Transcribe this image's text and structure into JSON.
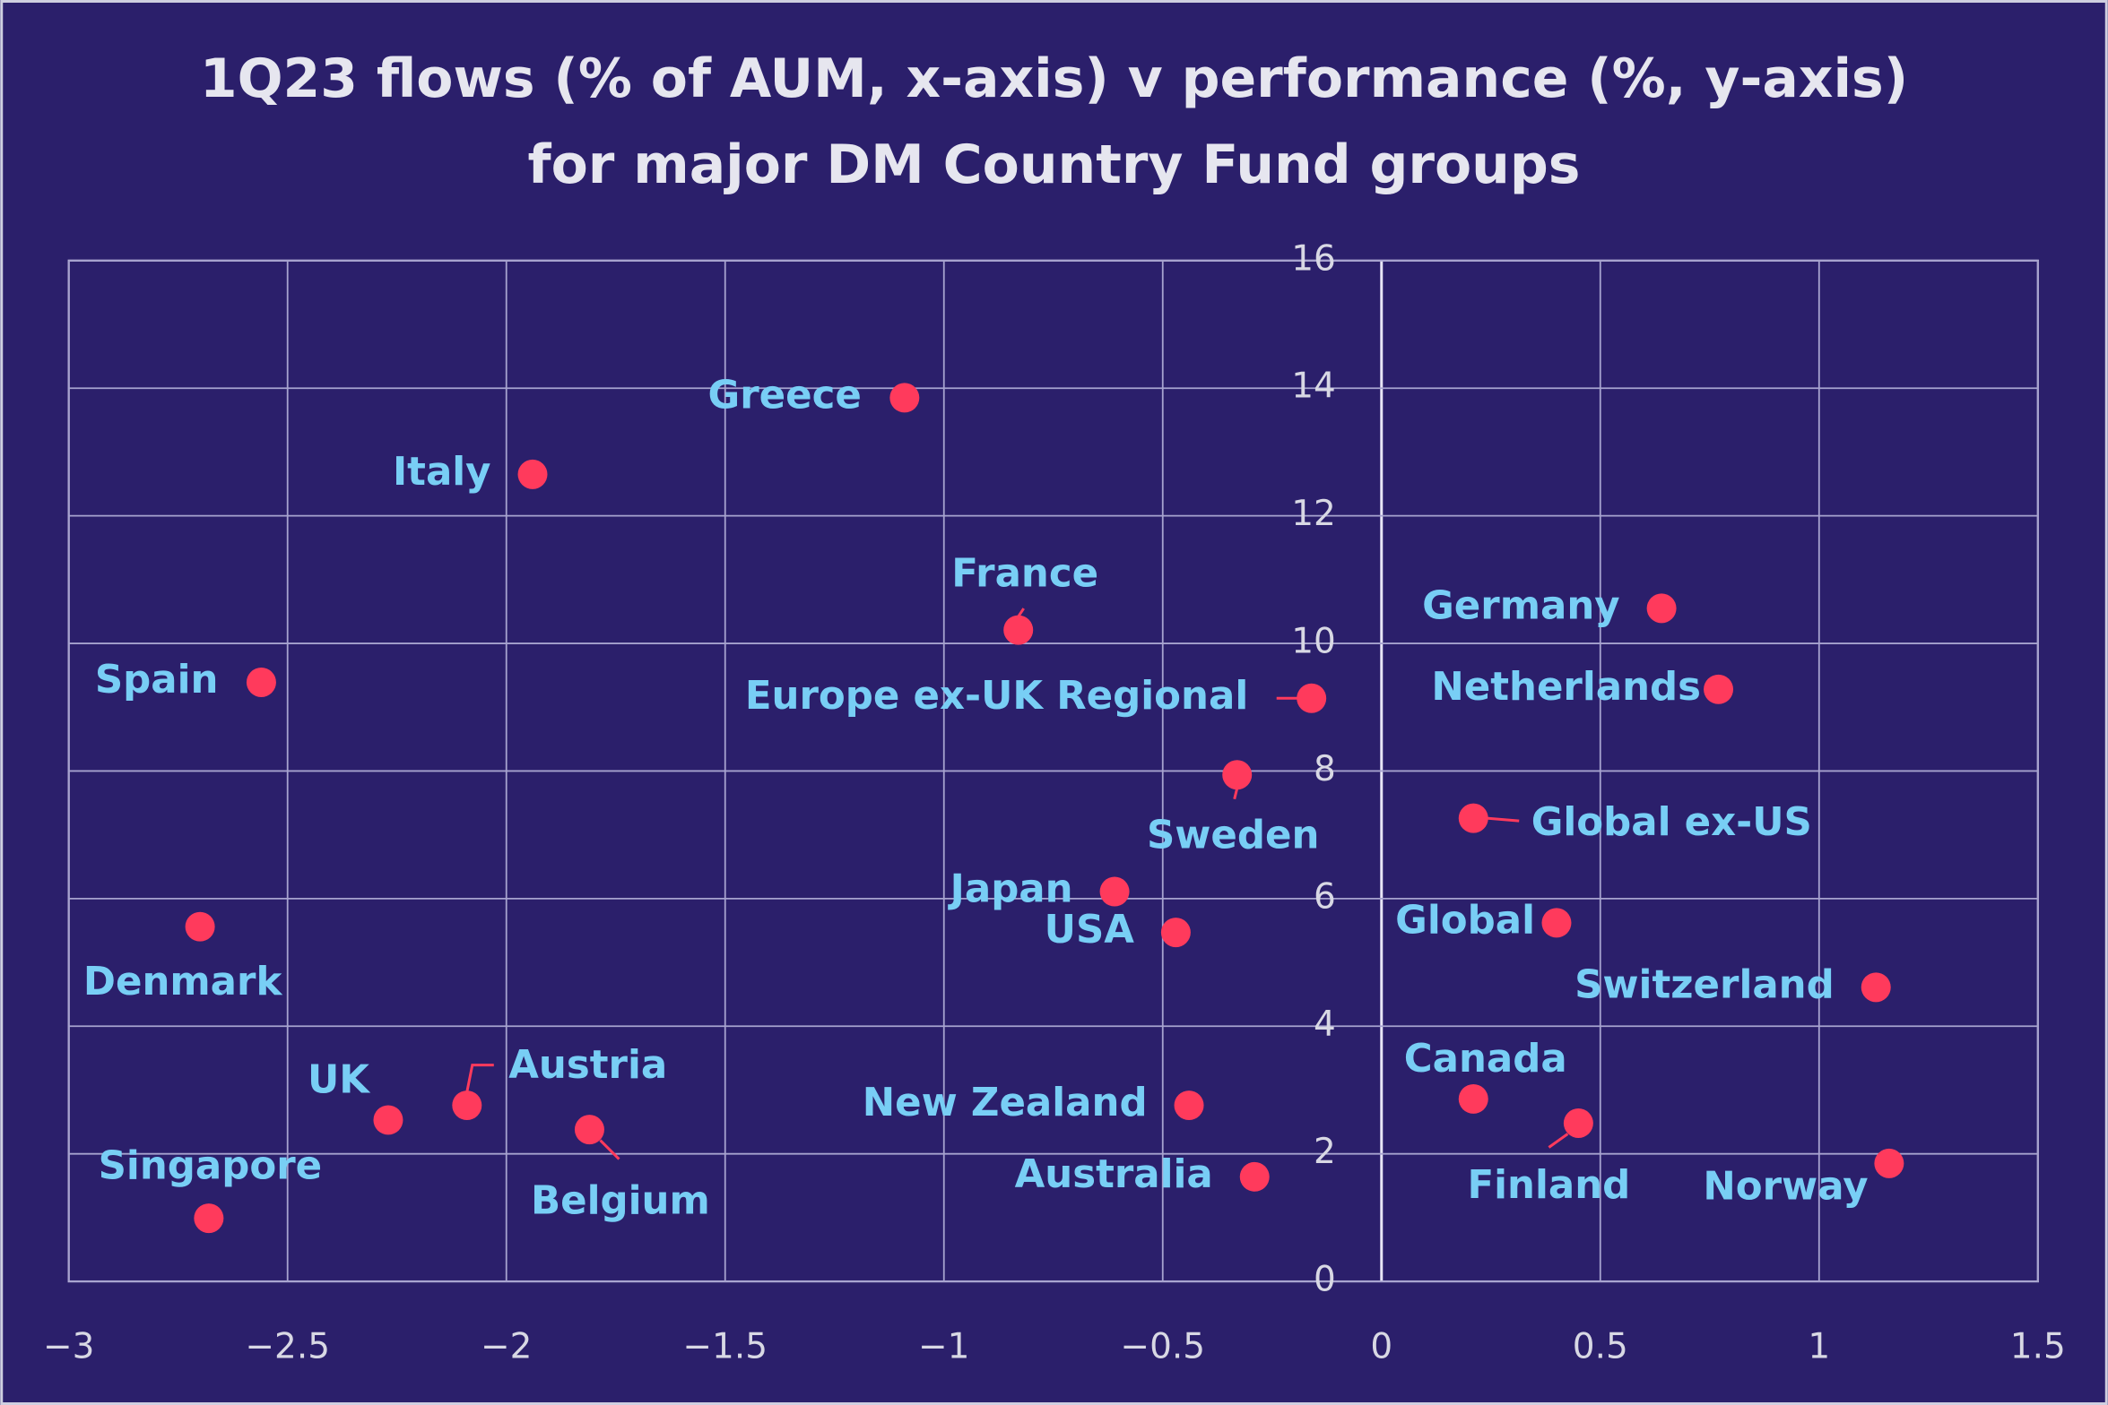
{
  "chart_data": {
    "type": "scatter",
    "title": [
      "1Q23 flows (% of AUM, x-axis) v performance (%, y-axis)",
      "for major DM Country Fund groups"
    ],
    "categories": [
      "Greece",
      "Italy",
      "France",
      "Germany",
      "Spain",
      "Europe ex-UK Regional",
      "Netherlands",
      "Sweden",
      "Global ex-US",
      "Japan",
      "USA",
      "Global",
      "Denmark",
      "Switzerland",
      "Canada",
      "Finland",
      "Norway",
      "New Zealand",
      "Australia",
      "UK",
      "Austria",
      "Belgium",
      "Singapore"
    ],
    "x": [
      -1.09,
      -1.94,
      -0.83,
      0.64,
      -2.56,
      -0.16,
      0.77,
      -0.33,
      0.21,
      -0.61,
      -0.47,
      0.4,
      -2.7,
      1.13,
      0.21,
      0.45,
      1.16,
      -0.44,
      -0.29,
      -2.27,
      -2.09,
      -1.81,
      -2.68
    ],
    "values": [
      13.85,
      12.65,
      10.21,
      10.55,
      9.39,
      9.14,
      9.28,
      7.94,
      7.26,
      6.11,
      5.47,
      5.62,
      5.56,
      4.61,
      2.86,
      2.48,
      1.85,
      2.76,
      1.64,
      2.53,
      2.76,
      2.38,
      0.99
    ],
    "color": "#ff3a5c",
    "xlim": [
      -3,
      1.5
    ],
    "xticks": [
      {
        "value": -3,
        "label": "−3"
      },
      {
        "value": -2.5,
        "label": "−2.5"
      },
      {
        "value": -2,
        "label": "−2"
      },
      {
        "value": -1.5,
        "label": "−1.5"
      },
      {
        "value": -1,
        "label": "−1"
      },
      {
        "value": -0.5,
        "label": "−0.5"
      },
      0,
      0.5,
      1,
      1.5
    ],
    "ylim": [
      0,
      16
    ],
    "yticks": [
      0,
      2,
      4,
      6,
      8,
      10,
      12,
      14,
      16
    ],
    "grid": true
  }
}
